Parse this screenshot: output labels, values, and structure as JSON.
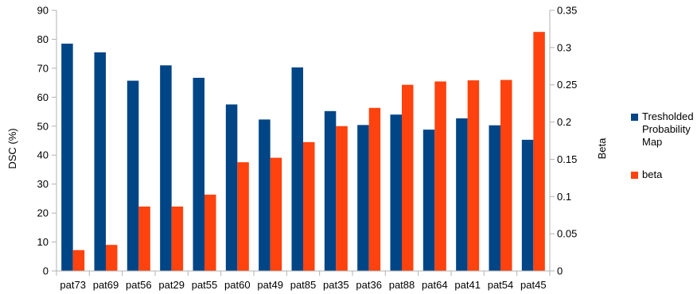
{
  "chart_data": {
    "type": "bar",
    "categories": [
      "pat73",
      "pat69",
      "pat56",
      "pat29",
      "pat55",
      "pat60",
      "pat49",
      "pat85",
      "pat35",
      "pat36",
      "pat88",
      "pat64",
      "pat41",
      "pat54",
      "pat45"
    ],
    "series": [
      {
        "name": "Tresholded Probability Map",
        "axis": "left",
        "color": "#004586",
        "values": [
          78.5,
          75.5,
          65.7,
          71,
          66.7,
          57.5,
          52.3,
          70.3,
          55.2,
          50.4,
          54,
          48.8,
          52.7,
          50.3,
          45.3
        ]
      },
      {
        "name": "beta",
        "axis": "right",
        "color": "#ff420e",
        "values": [
          0.028,
          0.035,
          0.0865,
          0.0865,
          0.1025,
          0.146,
          0.152,
          0.173,
          0.1945,
          0.219,
          0.25,
          0.2545,
          0.256,
          0.2565,
          0.321
        ]
      }
    ],
    "ylabel": "DSC (%)",
    "y2label": "Beta",
    "ylim": [
      0,
      90
    ],
    "y2lim": [
      0,
      0.35
    ],
    "yticks": [
      0,
      10,
      20,
      30,
      40,
      50,
      60,
      70,
      80,
      90
    ],
    "y2ticks": [
      "0",
      "0.05",
      "0.1",
      "0.15",
      "0.2",
      "0.25",
      "0.3",
      "0.35"
    ],
    "grid": false,
    "legend": {
      "placement": "right",
      "entries": [
        {
          "lines": [
            "Tresholded",
            "Probability",
            "Map"
          ],
          "color": "#004586"
        },
        {
          "lines": [
            "beta"
          ],
          "color": "#ff420e"
        }
      ]
    }
  }
}
